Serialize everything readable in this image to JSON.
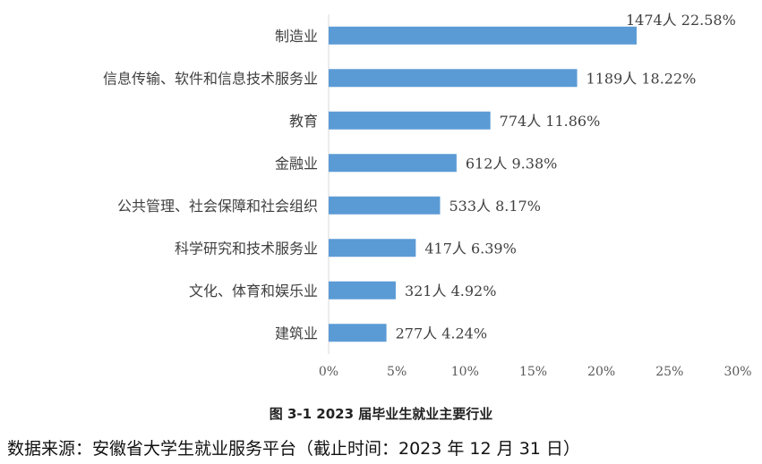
{
  "chart_data": {
    "type": "bar",
    "orientation": "horizontal",
    "categories": [
      "制造业",
      "信息传输、软件和信息技术服务业",
      "教育",
      "金融业",
      "公共管理、社会保障和社会组织",
      "科学研究和技术服务业",
      "文化、体育和娱乐业",
      "建筑业"
    ],
    "values": [
      22.58,
      18.22,
      11.86,
      9.38,
      8.17,
      6.39,
      4.92,
      4.24
    ],
    "counts": [
      1474,
      1189,
      774,
      612,
      533,
      417,
      321,
      277
    ],
    "data_labels": [
      "1474人  22.58%",
      "1189人  18.22%",
      "774人  11.86%",
      "612人  9.38%",
      "533人  8.17%",
      "417人  6.39%",
      "321人  4.92%",
      "277人  4.24%"
    ],
    "x_ticks": [
      "0%",
      "5%",
      "10%",
      "15%",
      "20%",
      "25%",
      "30%"
    ],
    "xlim": [
      0,
      30
    ],
    "bar_color": "#5b9bd5",
    "grid": false,
    "title": ""
  },
  "caption": "图 3-1   2023 届毕业生就业主要行业",
  "source": "数据来源：安徽省大学生就业服务平台（截止时间：2023 年 12 月 31 日）"
}
